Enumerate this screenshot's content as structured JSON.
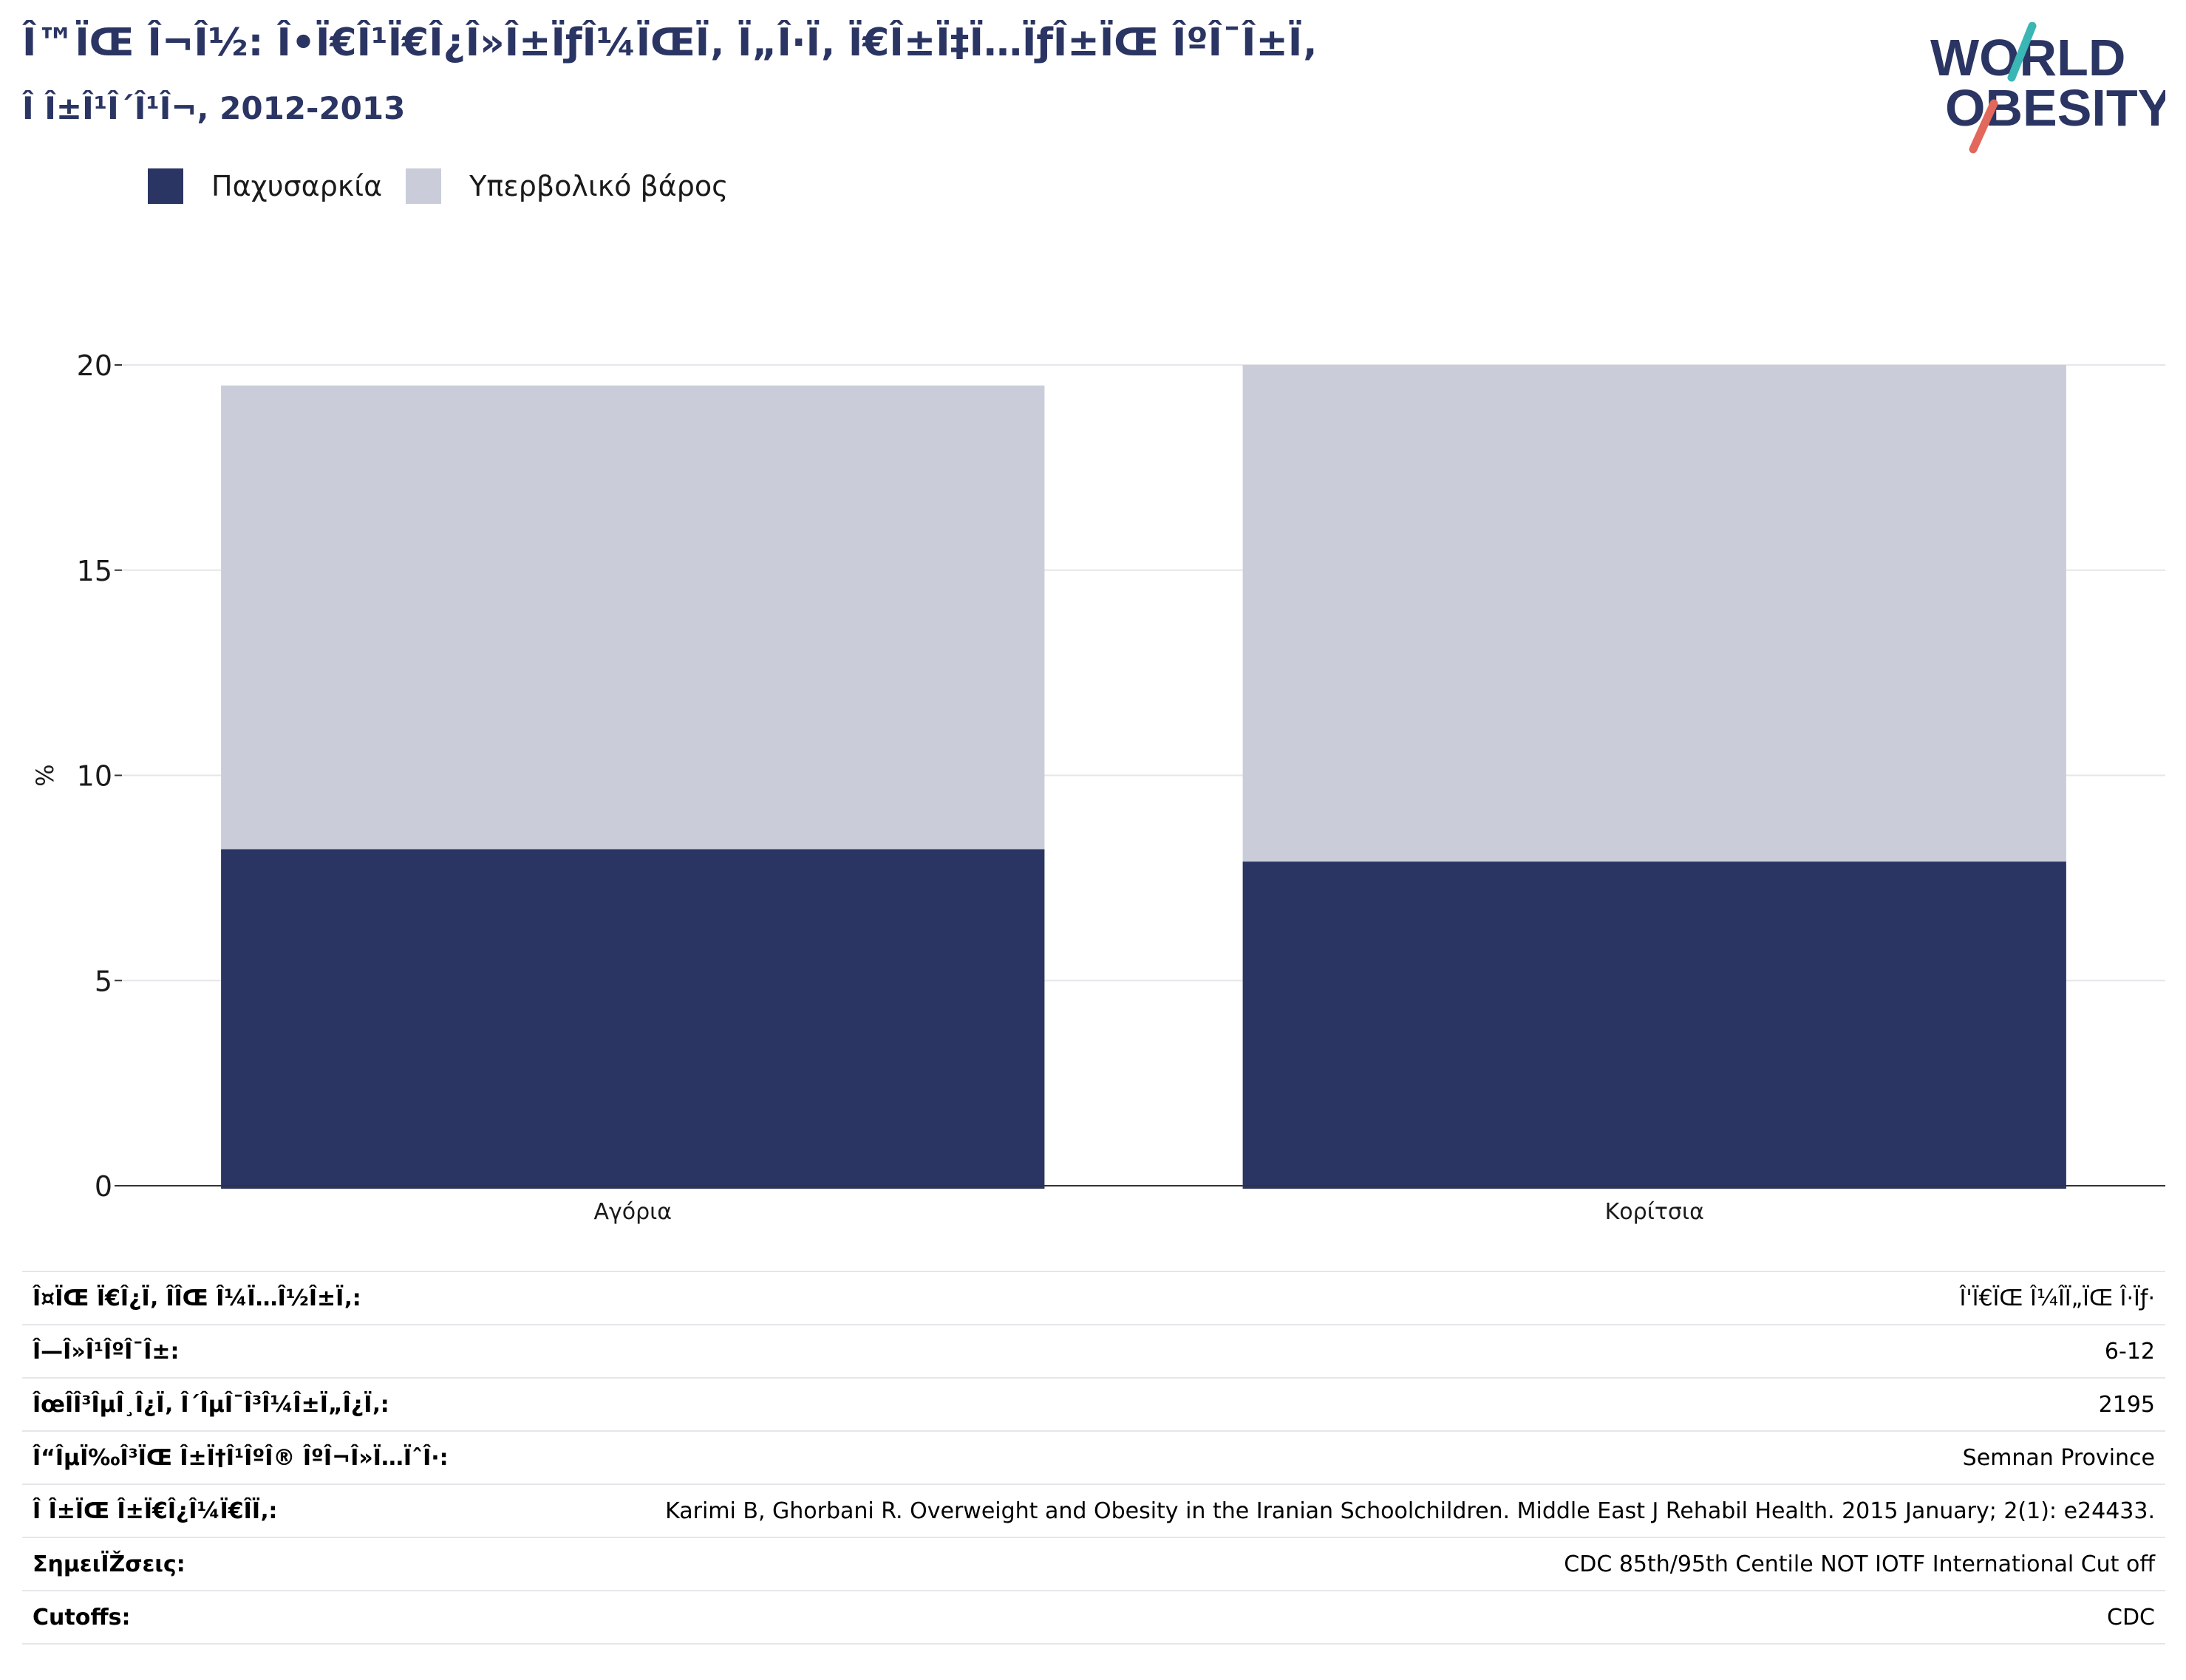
{
  "header": {
    "title": "Î™ÏŒ Î¬Î½: Î•Ï€Î¹Ï€Î¿Î»Î±ÏƒÎ¼ÏŒÏ‚ Ï„Î·Ï‚ Ï€Î±Ï‡Ï…ÏƒÎ±ÏŒ ÎºÎ¯Î±Ï‚",
    "subtitle": "Î Î±Î¹Î´Î¹Î¬, 2012-2013"
  },
  "logo": {
    "line1": "WORLD",
    "line2": "OBESITY"
  },
  "colors": {
    "obesity": "#2b3563",
    "overweight": "#cacdd9",
    "grid": "#e6e6ea",
    "axis": "#333333",
    "title": "#2b3563"
  },
  "chart_data": {
    "type": "bar",
    "stacked": true,
    "categories": [
      "Αγόρια",
      "Κορίτσια"
    ],
    "series": [
      {
        "name": "Παχυσαρκία",
        "values": [
          8.2,
          7.9
        ]
      },
      {
        "name": "Υπερβολικό βάρος",
        "values": [
          11.3,
          12.1
        ]
      }
    ],
    "ylabel": "%",
    "ylim": [
      0,
      20
    ],
    "yticks": [
      "0",
      "5",
      "10",
      "15",
      "20"
    ],
    "grid": true,
    "legend": "top-left"
  },
  "info_rows": [
    {
      "label": "Î¤ÏŒ Ï€Î¿Ï‚ ÎÎŒ Î¼Ï…Î½Î±Ï‚:",
      "value": "Î'Ï€ÏŒ Î¼ÎÏ„ÏŒ Î·Ïƒ·"
    },
    {
      "label": "Î—Î»Î¹ÎºÎ¯Î±:",
      "value": "6-12"
    },
    {
      "label": "ÎœÎ­Î³ÎµÎ¸Î¿Ï‚ Î´ÎµÎ¯Î³Î¼Î±Ï„Î¿Ï‚:",
      "value": "2195"
    },
    {
      "label": "Î“ÎµÏ‰Î³ÏŒ Î±Ï†Î¹ÎºÎ® ÎºÎ¬Î»Ï…ÏˆÎ·:",
      "value": "Semnan Province"
    },
    {
      "label": "Î Î±ÏŒ Î±Ï€Î¿Î¼Ï€ÎÏ‚:",
      "value": "Karimi B, Ghorbani R. Overweight and Obesity in the Iranian Schoolchildren. Middle East J Rehabil Health. 2015 January; 2(1): e24433."
    },
    {
      "label": "ΣημειÏŽσεις:",
      "value": "CDC 85th/95th Centile NOT IOTF International Cut off"
    },
    {
      "label": "Cutoffs:",
      "value": "CDC"
    }
  ]
}
